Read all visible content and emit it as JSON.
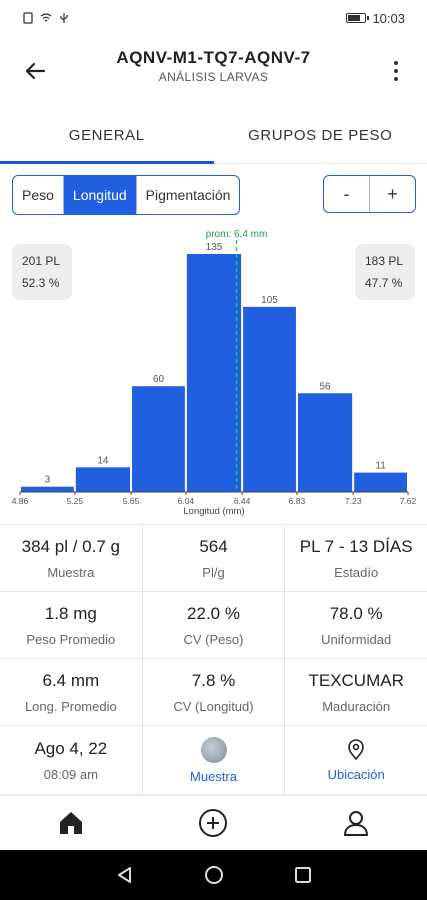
{
  "status": {
    "time": "10:03"
  },
  "header": {
    "title": "AQNV-M1-TQ7-AQNV-7",
    "subtitle": "ANÁLISIS LARVAS"
  },
  "tabs": [
    {
      "label": "GENERAL"
    },
    {
      "label": "GRUPOS DE PESO"
    }
  ],
  "segments": [
    {
      "label": "Peso"
    },
    {
      "label": "Longitud"
    },
    {
      "label": "Pigmentación"
    }
  ],
  "zoom": {
    "minus": "-",
    "plus": "+"
  },
  "side_left": {
    "count": "201 PL",
    "pct": "52.3 %"
  },
  "side_right": {
    "count": "183 PL",
    "pct": "47.7 %"
  },
  "chart_data": {
    "type": "bar",
    "bins": [
      4.86,
      5.25,
      5.65,
      6.04,
      6.44,
      6.83,
      7.23,
      7.62
    ],
    "categories": [
      "4.86-5.25",
      "5.25-5.65",
      "5.65-6.04",
      "6.04-6.44",
      "6.44-6.83",
      "6.83-7.23",
      "7.23-7.62"
    ],
    "values": [
      3,
      14,
      60,
      135,
      105,
      56,
      11
    ],
    "ylim": [
      0,
      135
    ],
    "xlabel": "Longitud (mm)",
    "mean": {
      "value": 6.4,
      "label": "prom: 6.4 mm"
    },
    "bar_color": "#1f5fe0",
    "mean_color": "#22c55e"
  },
  "stats": [
    [
      {
        "value": "384 pl / 0.7 g",
        "label": "Muestra"
      },
      {
        "value": "564",
        "label": "Pl/g"
      },
      {
        "value": "PL 7 - 13 DÍAS",
        "label": "Estadío"
      }
    ],
    [
      {
        "value": "1.8 mg",
        "label": "Peso Promedio"
      },
      {
        "value": "22.0 %",
        "label": "CV (Peso)"
      },
      {
        "value": "78.0 %",
        "label": "Uniformidad"
      }
    ],
    [
      {
        "value": "6.4 mm",
        "label": "Long. Promedio"
      },
      {
        "value": "7.8 %",
        "label": "CV (Longitud)"
      },
      {
        "value": "TEXCUMAR",
        "label": "Maduración"
      }
    ]
  ],
  "footer_row": {
    "date": "Ago 4, 22",
    "time": "08:09 am",
    "sample_label": "Muestra",
    "location_label": "Ubicación"
  },
  "colors": {
    "accent": "#1f5fe0",
    "mean_line": "#22c55e"
  }
}
